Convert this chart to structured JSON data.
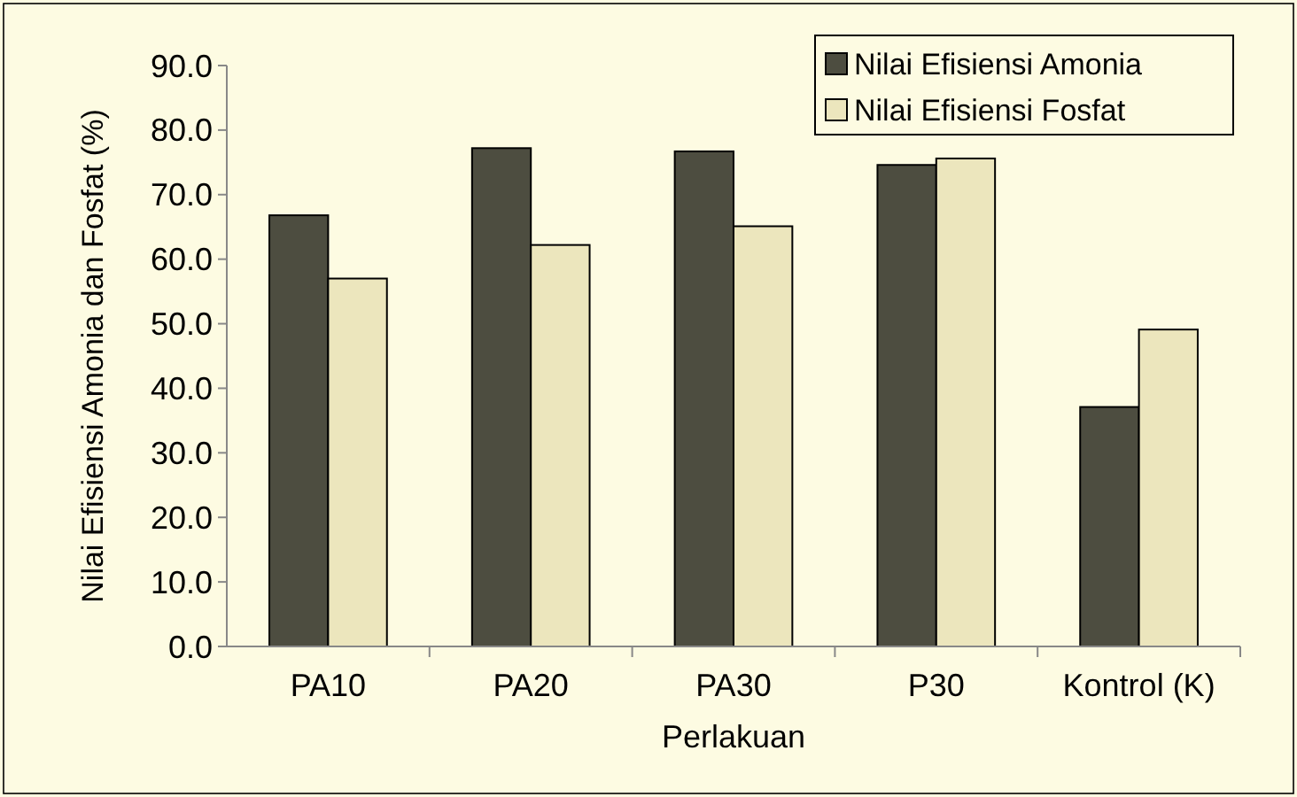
{
  "chart_data": {
    "type": "bar",
    "xlabel": "Perlakuan",
    "ylabel": "Nilai Efisiensi Amonia dan Fosfat (%)",
    "categories": [
      "PA10",
      "PA20",
      "PA30",
      "P30",
      "Kontrol (K)"
    ],
    "series": [
      {
        "name": "Nilai Efisiensi Amonia",
        "color": "#4d4d40",
        "values": [
          66.8,
          77.2,
          76.7,
          74.6,
          37.1
        ]
      },
      {
        "name": "Nilai Efisiensi Fosfat",
        "color": "#ece6bd",
        "values": [
          57.0,
          62.2,
          65.1,
          75.6,
          49.1
        ]
      }
    ],
    "ylim": [
      0,
      90
    ],
    "yticks": [
      {
        "value": 0,
        "label": "0.0"
      },
      {
        "value": 10,
        "label": "10.0"
      },
      {
        "value": 20,
        "label": "20.0"
      },
      {
        "value": 30,
        "label": "30.0"
      },
      {
        "value": 40,
        "label": "40.0"
      },
      {
        "value": 50,
        "label": "50.0"
      },
      {
        "value": 60,
        "label": "60.0"
      },
      {
        "value": 70,
        "label": "70.0"
      },
      {
        "value": 80,
        "label": "80.0"
      },
      {
        "value": 90,
        "label": "90.0"
      }
    ],
    "grid": false,
    "legend": "top right"
  }
}
